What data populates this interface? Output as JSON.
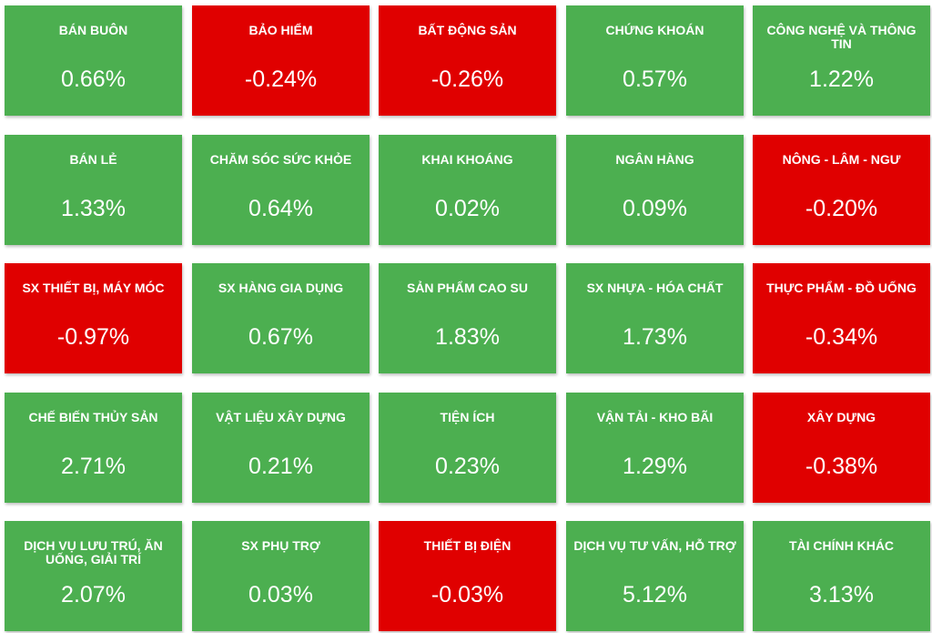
{
  "colors": {
    "positive": "#4caf50",
    "negative": "#e00000",
    "text": "#ffffff"
  },
  "chart_data": {
    "type": "heatmap",
    "columns": 5,
    "unit": "%",
    "tiles": [
      {
        "name": "BÁN BUÔN",
        "value": 0.66,
        "label": "0.66%"
      },
      {
        "name": "BẢO HIỂM",
        "value": -0.24,
        "label": "-0.24%"
      },
      {
        "name": "BẤT ĐỘNG SẢN",
        "value": -0.26,
        "label": "-0.26%"
      },
      {
        "name": "CHỨNG KHOÁN",
        "value": 0.57,
        "label": "0.57%"
      },
      {
        "name": "CÔNG NGHỆ VÀ THÔNG TIN",
        "value": 1.22,
        "label": "1.22%"
      },
      {
        "name": "BÁN LẺ",
        "value": 1.33,
        "label": "1.33%"
      },
      {
        "name": "CHĂM SÓC SỨC KHỎE",
        "value": 0.64,
        "label": "0.64%"
      },
      {
        "name": "KHAI KHOÁNG",
        "value": 0.02,
        "label": "0.02%"
      },
      {
        "name": "NGÂN HÀNG",
        "value": 0.09,
        "label": "0.09%"
      },
      {
        "name": "NÔNG - LÂM - NGƯ",
        "value": -0.2,
        "label": "-0.20%"
      },
      {
        "name": "SX THIẾT BỊ, MÁY MÓC",
        "value": -0.97,
        "label": "-0.97%"
      },
      {
        "name": "SX HÀNG GIA DỤNG",
        "value": 0.67,
        "label": "0.67%"
      },
      {
        "name": "SẢN PHẨM CAO SU",
        "value": 1.83,
        "label": "1.83%"
      },
      {
        "name": "SX NHỰA - HÓA CHẤT",
        "value": 1.73,
        "label": "1.73%"
      },
      {
        "name": "THỰC PHẨM - ĐỒ UỐNG",
        "value": -0.34,
        "label": "-0.34%"
      },
      {
        "name": "CHẾ BIẾN THỦY SẢN",
        "value": 2.71,
        "label": "2.71%"
      },
      {
        "name": "VẬT LIỆU XÂY DỰNG",
        "value": 0.21,
        "label": "0.21%"
      },
      {
        "name": "TIỆN ÍCH",
        "value": 0.23,
        "label": "0.23%"
      },
      {
        "name": "VẬN TẢI - KHO BÃI",
        "value": 1.29,
        "label": "1.29%"
      },
      {
        "name": "XÂY DỰNG",
        "value": -0.38,
        "label": "-0.38%"
      },
      {
        "name": "DỊCH VỤ LƯU TRÚ, ĂN UỐNG, GIẢI TRÍ",
        "value": 2.07,
        "label": "2.07%"
      },
      {
        "name": "SX PHỤ TRỢ",
        "value": 0.03,
        "label": "0.03%"
      },
      {
        "name": "THIẾT BỊ ĐIỆN",
        "value": -0.03,
        "label": "-0.03%"
      },
      {
        "name": "DỊCH VỤ TƯ VẤN, HỖ TRỢ",
        "value": 5.12,
        "label": "5.12%"
      },
      {
        "name": "TÀI CHÍNH KHÁC",
        "value": 3.13,
        "label": "3.13%"
      }
    ]
  }
}
